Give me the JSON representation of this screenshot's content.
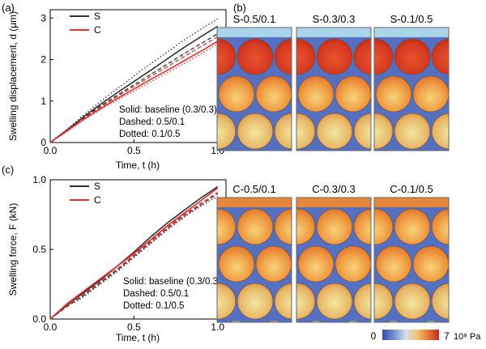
{
  "panel_labels": {
    "a": "(a)",
    "b": "(b)",
    "c": "(c)"
  },
  "colors": {
    "S": "#333333",
    "C": "#e03030",
    "panel_border": "#666666"
  },
  "chart_data": [
    {
      "type": "line",
      "panel": "(a)",
      "xlabel": "Time, t (h)",
      "ylabel": "Swelling displacement, d (μm)",
      "xlim": [
        0,
        1.05
      ],
      "ylim": [
        0,
        3.2
      ],
      "x_ticks": [
        0.0,
        0.5,
        1.0
      ],
      "y_ticks": [
        0,
        1,
        2,
        3
      ],
      "x_tick_labels": [
        "0.0",
        "0.5",
        "1.0"
      ],
      "y_tick_labels": [
        "0",
        "1",
        "2",
        "3"
      ],
      "legend": [
        {
          "name": "S",
          "color": "#333333"
        },
        {
          "name": "C",
          "color": "#e03030"
        }
      ],
      "annotations": [
        "Solid: baseline (0.3/0.3)",
        "Dashed: 0.5/0.1",
        "Dotted: 0.1/0.5"
      ],
      "series": [
        {
          "name": "S",
          "style": "solid",
          "x": [
            0,
            0.1,
            0.2,
            0.3,
            0.4,
            0.5,
            0.6,
            0.7,
            0.8,
            0.9,
            1.0
          ],
          "y": [
            0,
            0.3,
            0.62,
            0.92,
            1.2,
            1.47,
            1.74,
            2.02,
            2.29,
            2.55,
            2.8
          ]
        },
        {
          "name": "S",
          "style": "dashed",
          "x": [
            0,
            0.1,
            0.2,
            0.3,
            0.4,
            0.5,
            0.6,
            0.7,
            0.8,
            0.9,
            1.0
          ],
          "y": [
            0,
            0.3,
            0.6,
            0.88,
            1.14,
            1.39,
            1.64,
            1.89,
            2.14,
            2.38,
            2.62
          ]
        },
        {
          "name": "S",
          "style": "dotted",
          "x": [
            0,
            0.1,
            0.2,
            0.3,
            0.4,
            0.5,
            0.6,
            0.7,
            0.8,
            0.9,
            1.0
          ],
          "y": [
            0,
            0.32,
            0.66,
            0.99,
            1.3,
            1.6,
            1.9,
            2.18,
            2.47,
            2.73,
            2.98
          ]
        },
        {
          "name": "C",
          "style": "solid",
          "x": [
            0,
            0.1,
            0.2,
            0.3,
            0.4,
            0.5,
            0.6,
            0.7,
            0.8,
            0.9,
            1.0
          ],
          "y": [
            0,
            0.28,
            0.56,
            0.82,
            1.06,
            1.29,
            1.52,
            1.74,
            1.97,
            2.2,
            2.44
          ]
        },
        {
          "name": "C",
          "style": "dashed",
          "x": [
            0,
            0.1,
            0.2,
            0.3,
            0.4,
            0.5,
            0.6,
            0.7,
            0.8,
            0.9,
            1.0
          ],
          "y": [
            0,
            0.29,
            0.58,
            0.85,
            1.11,
            1.35,
            1.59,
            1.83,
            2.07,
            2.31,
            2.55
          ]
        },
        {
          "name": "C",
          "style": "dotted",
          "x": [
            0,
            0.1,
            0.2,
            0.3,
            0.4,
            0.5,
            0.6,
            0.7,
            0.8,
            0.9,
            1.0
          ],
          "y": [
            0,
            0.27,
            0.54,
            0.79,
            1.02,
            1.24,
            1.46,
            1.68,
            1.9,
            2.13,
            2.38
          ]
        }
      ]
    },
    {
      "type": "line",
      "panel": "(c)",
      "xlabel": "Time, t (h)",
      "ylabel": "Swelling force, F (kN)",
      "xlim": [
        0,
        1.05
      ],
      "ylim": [
        0,
        1.0
      ],
      "x_ticks": [
        0.0,
        0.5,
        1.0
      ],
      "y_ticks": [
        0.0,
        0.5,
        1.0
      ],
      "x_tick_labels": [
        "0.0",
        "0.5",
        "1.0"
      ],
      "y_tick_labels": [
        "0.0",
        "0.5",
        "1.0"
      ],
      "legend": [
        {
          "name": "S",
          "color": "#333333"
        },
        {
          "name": "C",
          "color": "#e03030"
        }
      ],
      "annotations": [
        "Solid: baseline (0.3/0.3)",
        "Dashed: 0.5/0.1",
        "Dotted: 0.1/0.5"
      ],
      "series": [
        {
          "name": "S",
          "style": "solid",
          "x": [
            0,
            0.1,
            0.2,
            0.3,
            0.4,
            0.5,
            0.6,
            0.7,
            0.8,
            0.9,
            1.0
          ],
          "y": [
            0,
            0.1,
            0.19,
            0.28,
            0.38,
            0.48,
            0.59,
            0.69,
            0.78,
            0.87,
            0.95
          ]
        },
        {
          "name": "S",
          "style": "dashed",
          "x": [
            0,
            0.1,
            0.2,
            0.3,
            0.4,
            0.5,
            0.6,
            0.7,
            0.8,
            0.9,
            1.0
          ],
          "y": [
            0,
            0.09,
            0.17,
            0.26,
            0.35,
            0.45,
            0.55,
            0.65,
            0.74,
            0.82,
            0.9
          ]
        },
        {
          "name": "S",
          "style": "dotted",
          "x": [
            0,
            0.1,
            0.2,
            0.3,
            0.4,
            0.5,
            0.6,
            0.7,
            0.8,
            0.9,
            1.0
          ],
          "y": [
            0,
            0.09,
            0.16,
            0.25,
            0.34,
            0.44,
            0.54,
            0.64,
            0.73,
            0.81,
            0.88
          ]
        },
        {
          "name": "C",
          "style": "solid",
          "x": [
            0,
            0.1,
            0.2,
            0.3,
            0.4,
            0.5,
            0.6,
            0.7,
            0.8,
            0.9,
            1.0
          ],
          "y": [
            0,
            0.11,
            0.2,
            0.29,
            0.38,
            0.47,
            0.57,
            0.67,
            0.76,
            0.85,
            0.94
          ]
        },
        {
          "name": "C",
          "style": "dashed",
          "x": [
            0,
            0.1,
            0.2,
            0.3,
            0.4,
            0.5,
            0.6,
            0.7,
            0.8,
            0.9,
            1.0
          ],
          "y": [
            0,
            0.1,
            0.18,
            0.27,
            0.36,
            0.46,
            0.56,
            0.66,
            0.75,
            0.83,
            0.91
          ]
        },
        {
          "name": "C",
          "style": "dotted",
          "x": [
            0,
            0.1,
            0.2,
            0.3,
            0.4,
            0.5,
            0.6,
            0.7,
            0.8,
            0.9,
            1.0
          ],
          "y": [
            0,
            0.1,
            0.18,
            0.27,
            0.36,
            0.45,
            0.55,
            0.65,
            0.74,
            0.82,
            0.9
          ]
        }
      ]
    }
  ],
  "contour_panels": {
    "top": [
      {
        "title": "S-0.5/0.1"
      },
      {
        "title": "S-0.3/0.3"
      },
      {
        "title": "S-0.1/0.5"
      }
    ],
    "bottom": [
      {
        "title": "C-0.5/0.1"
      },
      {
        "title": "C-0.3/0.3"
      },
      {
        "title": "C-0.1/0.5"
      }
    ]
  },
  "colorbar": {
    "min_label": "0",
    "max_label": "7",
    "unit": "10⁸ Pa"
  }
}
